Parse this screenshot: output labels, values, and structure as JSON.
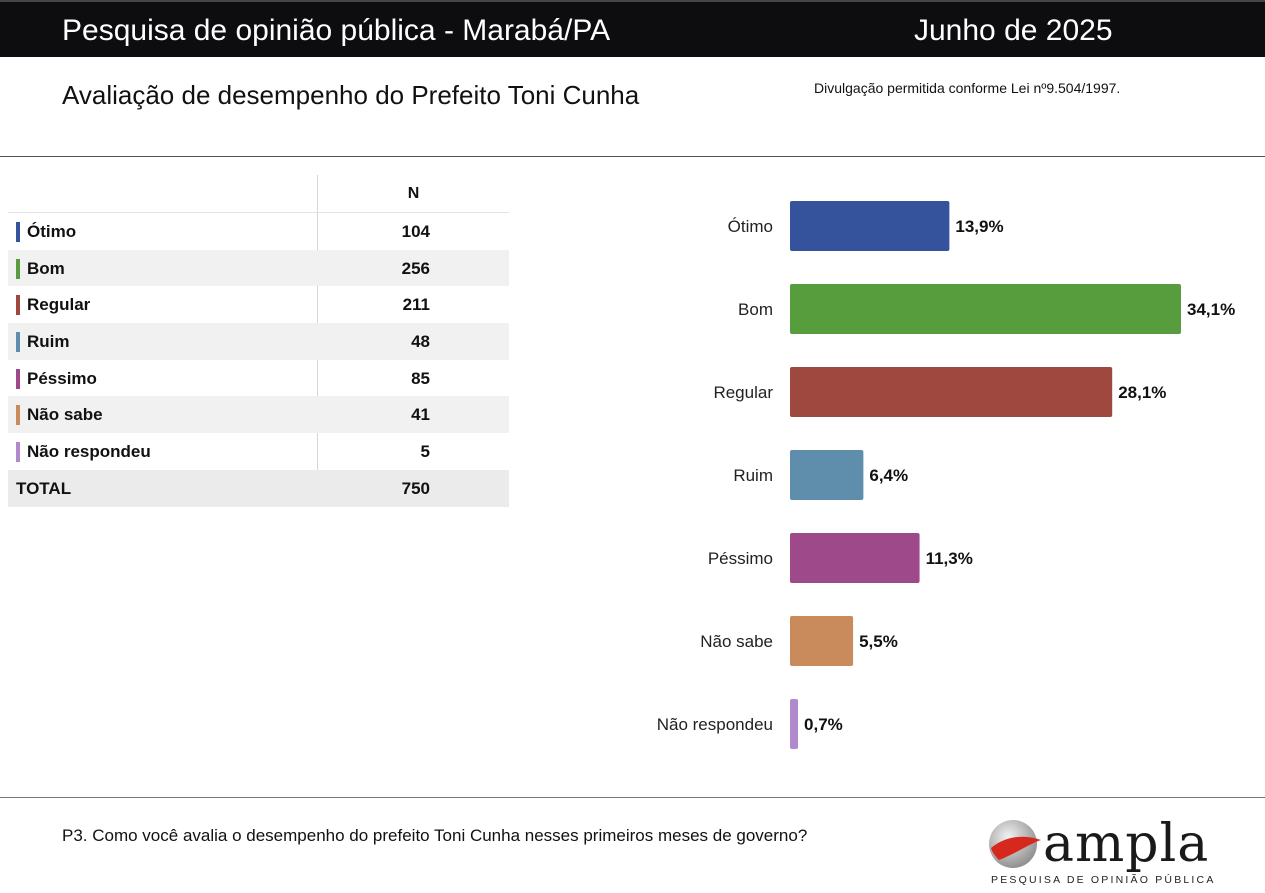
{
  "header": {
    "title": "Pesquisa de opinião pública - Marabá/PA",
    "date": "Junho de 2025"
  },
  "subheader": {
    "title": "Avaliação de desempenho do Prefeito Toni Cunha",
    "disclosure": "Divulgação permitida conforme Lei nº9.504/1997."
  },
  "table": {
    "n_header": "N",
    "rows": [
      {
        "label": "Ótimo",
        "n": "104",
        "color": "#34539c"
      },
      {
        "label": "Bom",
        "n": "256",
        "color": "#579c3d"
      },
      {
        "label": "Regular",
        "n": "211",
        "color": "#9e4840"
      },
      {
        "label": "Ruim",
        "n": "48",
        "color": "#5e8eac"
      },
      {
        "label": "Péssimo",
        "n": "85",
        "color": "#9e4a8a"
      },
      {
        "label": "Não sabe",
        "n": "41",
        "color": "#c98a5c"
      },
      {
        "label": "Não respondeu",
        "n": "5",
        "color": "#b18acc"
      }
    ],
    "total": {
      "label": "TOTAL",
      "n": "750"
    }
  },
  "chart_data": {
    "type": "bar",
    "orientation": "horizontal",
    "categories": [
      "Ótimo",
      "Bom",
      "Regular",
      "Ruim",
      "Péssimo",
      "Não sabe",
      "Não respondeu"
    ],
    "values": [
      13.9,
      34.1,
      28.1,
      6.4,
      11.3,
      5.5,
      0.7
    ],
    "value_labels": [
      "13,9%",
      "34,1%",
      "28,1%",
      "6,4%",
      "11,3%",
      "5,5%",
      "0,7%"
    ],
    "colors": [
      "#34539c",
      "#579c3d",
      "#9e4840",
      "#5e8eac",
      "#9e4a8a",
      "#c98a5c",
      "#b18acc"
    ],
    "xlim": [
      0,
      34.1
    ],
    "grid": false,
    "legend": "none"
  },
  "footer": {
    "question": "P3. Como você avalia o desempenho do prefeito Toni Cunha nesses primeiros meses de governo?",
    "logo_word": "ampla",
    "logo_tagline": "PESQUISA DE OPINIÃO PÚBLICA"
  }
}
